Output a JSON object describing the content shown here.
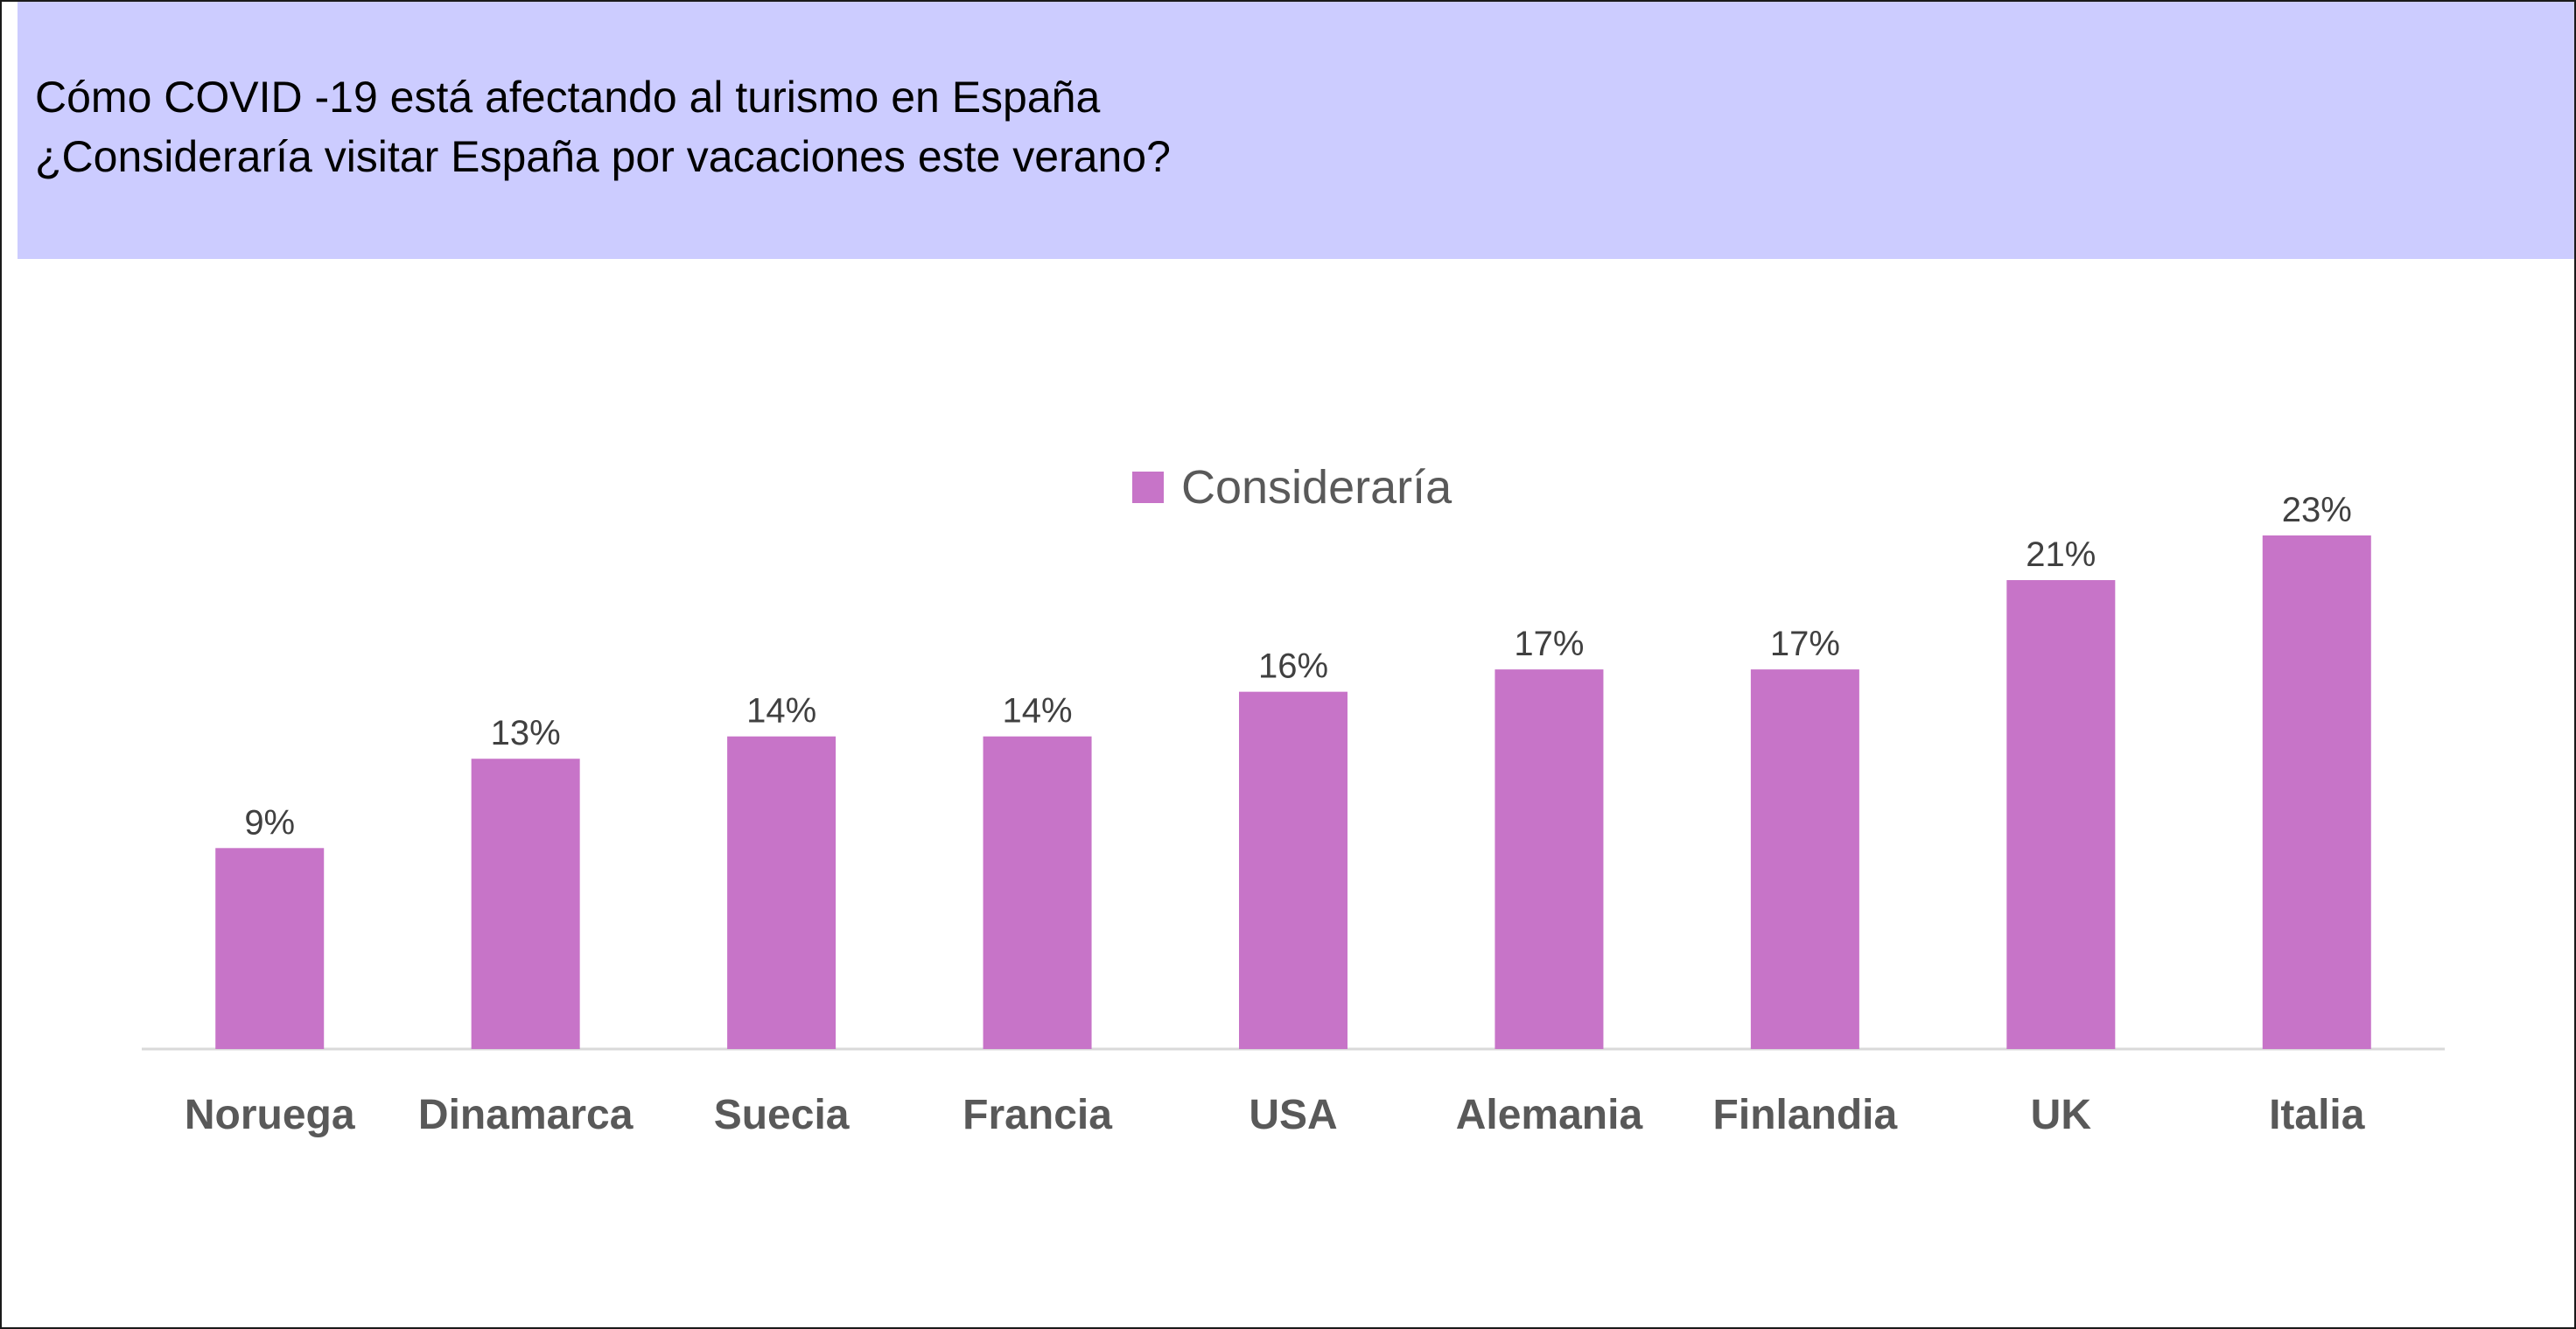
{
  "header": {
    "title": "Cómo COVID -19 está afectando al turismo en España",
    "subtitle": "¿Consideraría visitar España por vacaciones este verano?"
  },
  "colors": {
    "header_bg": "#ccccff",
    "bar": "#c774c8",
    "axis_line": "#d9d9d9",
    "label_text": "#404040",
    "category_text": "#595959"
  },
  "chart_data": {
    "type": "bar",
    "title": "",
    "xlabel": "",
    "ylabel": "",
    "categories": [
      "Noruega",
      "Dinamarca",
      "Suecia",
      "Francia",
      "USA",
      "Alemania",
      "Finlandia",
      "UK",
      "Italia"
    ],
    "series": [
      {
        "name": "Consideraría",
        "values": [
          9,
          13,
          14,
          14,
          16,
          17,
          17,
          21,
          23
        ],
        "labels": [
          "9%",
          "13%",
          "14%",
          "14%",
          "16%",
          "17%",
          "17%",
          "21%",
          "23%"
        ]
      }
    ],
    "ylim": [
      0,
      23
    ],
    "grid": false,
    "legend_position": "top-center",
    "data_labels": true
  }
}
